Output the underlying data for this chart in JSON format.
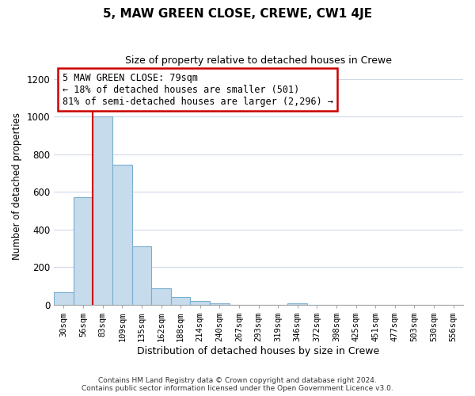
{
  "title": "5, MAW GREEN CLOSE, CREWE, CW1 4JE",
  "subtitle": "Size of property relative to detached houses in Crewe",
  "xlabel": "Distribution of detached houses by size in Crewe",
  "ylabel": "Number of detached properties",
  "bar_labels": [
    "30sqm",
    "56sqm",
    "83sqm",
    "109sqm",
    "135sqm",
    "162sqm",
    "188sqm",
    "214sqm",
    "240sqm",
    "267sqm",
    "293sqm",
    "319sqm",
    "346sqm",
    "372sqm",
    "398sqm",
    "425sqm",
    "451sqm",
    "477sqm",
    "503sqm",
    "530sqm",
    "556sqm"
  ],
  "bar_heights": [
    65,
    570,
    1000,
    745,
    310,
    90,
    40,
    20,
    10,
    0,
    0,
    0,
    8,
    0,
    0,
    0,
    0,
    0,
    0,
    0,
    0
  ],
  "bar_color": "#c6dcec",
  "bar_edge_color": "#7aaece",
  "highlight_line_color": "#cc0000",
  "ylim": [
    0,
    1260
  ],
  "yticks": [
    0,
    200,
    400,
    600,
    800,
    1000,
    1200
  ],
  "annotation_title": "5 MAW GREEN CLOSE: 79sqm",
  "annotation_line1": "← 18% of detached houses are smaller (501)",
  "annotation_line2": "81% of semi-detached houses are larger (2,296) →",
  "footer_line1": "Contains HM Land Registry data © Crown copyright and database right 2024.",
  "footer_line2": "Contains public sector information licensed under the Open Government Licence v3.0.",
  "background_color": "#ffffff",
  "grid_color": "#d0d8e8"
}
